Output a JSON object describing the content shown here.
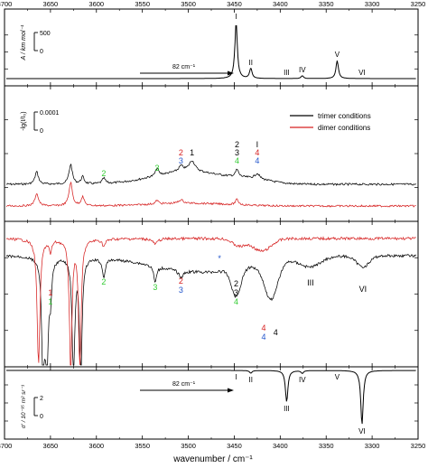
{
  "chart_data": {
    "type": "line",
    "xlabel": "wavenumber / cm⁻¹",
    "xlim": [
      3700,
      3250
    ],
    "x_ticks": [
      "3700",
      "3650",
      "3600",
      "3550",
      "3500",
      "3450",
      "3400",
      "3350",
      "3300",
      "3250"
    ],
    "panels": [
      {
        "id": "computed-trimer-ir",
        "ylabel": "A / km mol⁻¹",
        "scale_bar": {
          "top": "500",
          "bottom": "0"
        },
        "shift_arrow": "82 cm⁻¹",
        "series": [
          {
            "color": "#000000",
            "style": "solid",
            "peaks": [
              {
                "label": "I",
                "x": 3448,
                "value": 1.0
              },
              {
                "label": "II",
                "x": 3432,
                "value": 0.18
              },
              {
                "label": "III",
                "x": 3393,
                "value": 0.0
              },
              {
                "label": "IV",
                "x": 3376,
                "value": 0.05
              },
              {
                "label": "V",
                "x": 3338,
                "value": 0.32
              },
              {
                "label": "VI",
                "x": 3311,
                "value": 0.0
              }
            ]
          }
        ]
      },
      {
        "id": "ir-absorbance",
        "ylabel": "-lg(I/I₀)",
        "scale_bar": {
          "top": "0.0001",
          "bottom": "0"
        },
        "series": [
          {
            "name": "trimer conditions",
            "color": "#000000"
          },
          {
            "name": "dimer conditions",
            "color": "#d62020"
          }
        ],
        "annotations": [
          {
            "x": 3592,
            "lines": [
              {
                "text": "2",
                "color": "#33cc33"
              }
            ]
          },
          {
            "x": 3534,
            "lines": [
              {
                "text": "3",
                "color": "#33cc33"
              }
            ]
          },
          {
            "x": 3508,
            "lines": [
              {
                "text": "2",
                "color": "#d62020"
              },
              {
                "text": "3",
                "color": "#2255cc"
              }
            ]
          },
          {
            "x": 3496,
            "lines": [
              {
                "text": "1",
                "color": "#000000"
              }
            ]
          },
          {
            "x": 3447,
            "lines": [
              {
                "text": "2",
                "color": "#000000"
              },
              {
                "text": "3",
                "color": "#000000"
              },
              {
                "text": "4",
                "color": "#33cc33"
              }
            ]
          },
          {
            "x": 3425,
            "lines": [
              {
                "text": "I",
                "color": "#000000"
              },
              {
                "text": "4",
                "color": "#d62020"
              },
              {
                "text": "4",
                "color": "#2255cc"
              }
            ]
          }
        ]
      },
      {
        "id": "raman-spectrum",
        "series": [
          {
            "name": "trimer conditions",
            "color": "#000000"
          },
          {
            "name": "dimer conditions",
            "color": "#d62020"
          }
        ],
        "annotations": [
          {
            "x": 3650,
            "lines": [
              {
                "text": "1",
                "color": "#d62020"
              },
              {
                "text": "1",
                "color": "#33cc33"
              }
            ]
          },
          {
            "x": 3592,
            "lines": [
              {
                "text": "2",
                "color": "#33cc33"
              }
            ]
          },
          {
            "x": 3536,
            "lines": [
              {
                "text": "3",
                "color": "#33cc33"
              }
            ]
          },
          {
            "x": 3508,
            "lines": [
              {
                "text": "2",
                "color": "#d62020"
              },
              {
                "text": "3",
                "color": "#2255cc"
              }
            ]
          },
          {
            "x": 3448,
            "lines": [
              {
                "text": "2",
                "color": "#000000"
              },
              {
                "text": "3",
                "color": "#000000"
              },
              {
                "text": "4",
                "color": "#33cc33"
              }
            ]
          },
          {
            "x": 3418,
            "lines": [
              {
                "text": "4",
                "color": "#d62020"
              },
              {
                "text": "4",
                "color": "#2255cc"
              }
            ]
          },
          {
            "x": 3405,
            "lines": [
              {
                "text": "4",
                "color": "#000000"
              }
            ]
          },
          {
            "x": 3466,
            "lines": [
              {
                "text": "*",
                "color": "#2255cc"
              }
            ]
          },
          {
            "x": 3367,
            "lines": [
              {
                "text": "III",
                "color": "#000000"
              }
            ]
          },
          {
            "x": 3310,
            "lines": [
              {
                "text": "VI",
                "color": "#000000"
              }
            ]
          }
        ]
      },
      {
        "id": "computed-trimer-raman",
        "ylabel": "σ′ / 10⁻³⁵ m² sr⁻¹",
        "scale_bar": {
          "top": "2",
          "bottom": "0"
        },
        "shift_arrow": "82 cm⁻¹",
        "series": [
          {
            "color": "#000000",
            "style": "solid",
            "peaks": [
              {
                "label": "I",
                "x": 3448,
                "value": 0.0
              },
              {
                "label": "II",
                "x": 3432,
                "value": 0.05
              },
              {
                "label": "III",
                "x": 3393,
                "value": 0.58
              },
              {
                "label": "IV",
                "x": 3376,
                "value": 0.05
              },
              {
                "label": "V",
                "x": 3338,
                "value": 0.0
              },
              {
                "label": "VI",
                "x": 3311,
                "value": 1.0
              }
            ]
          }
        ]
      }
    ]
  }
}
